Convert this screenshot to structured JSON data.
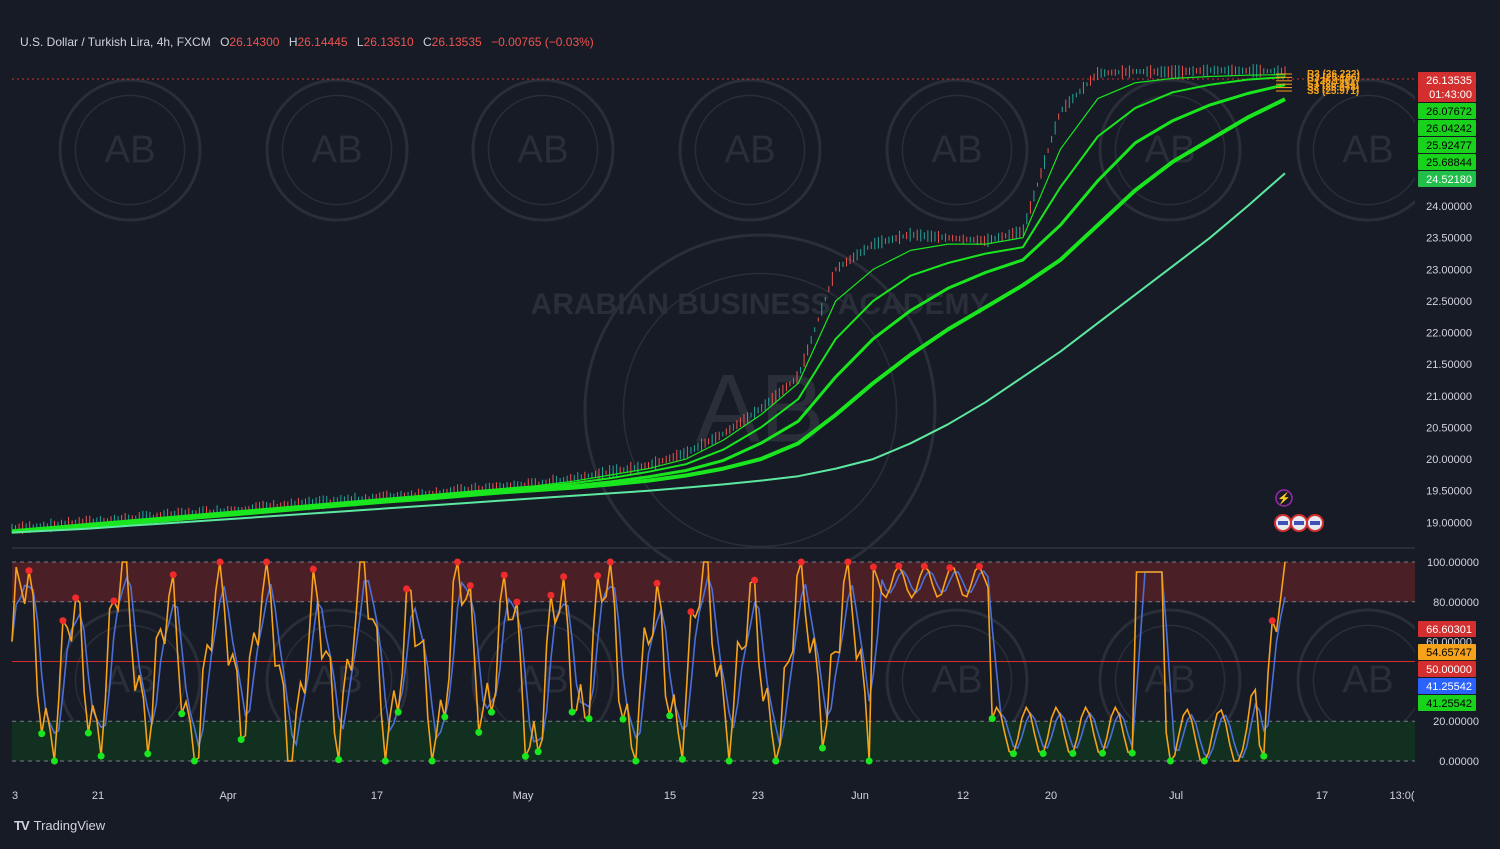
{
  "header": {
    "symbol": "U.S. Dollar / Turkish Lira, 4h, FXCM",
    "o_label": "O",
    "o_value": "26.14300",
    "h_label": "H",
    "h_value": "26.14445",
    "l_label": "L",
    "l_value": "26.13510",
    "c_label": "C",
    "c_value": "26.13535",
    "change": "−0.00765 (−0.03%)"
  },
  "brand": {
    "logo": "TV",
    "name": "TradingView"
  },
  "watermark": {
    "text": "ARABIAN BUSINESS ACADEMY",
    "mono": "AB"
  },
  "colors": {
    "background": "#171b25",
    "up": "#26a69a",
    "down": "#ef5350",
    "ema": "#19e61e",
    "ema_slow": "#5ce8a0",
    "stoch_k": "#f7a21b",
    "stoch_d": "#4b6fd6",
    "overbought": "#4a1f25",
    "oversold": "#12301f"
  },
  "chart_data": [
    {
      "type": "line",
      "panel": "price",
      "y_ticks": [
        "19.00000",
        "19.50000",
        "20.00000",
        "20.50000",
        "21.00000",
        "21.50000",
        "22.00000",
        "22.50000",
        "23.00000",
        "23.50000",
        "24.00000"
      ],
      "ylim": [
        18.8,
        26.5
      ],
      "x_ticks": [
        "3",
        "21",
        "Apr",
        "17",
        "May",
        "15",
        "23",
        "Jun",
        "12",
        "20",
        "Jul",
        "17",
        "13:0("
      ],
      "last_price": "26.13535",
      "countdown": "01:43:00",
      "ema_labels": [
        "26.07672",
        "26.04242",
        "25.92477",
        "25.68844",
        "24.52180"
      ],
      "pivot_labels": [
        "R3 (26.222)",
        "R2 (26.186)",
        "P (26.150)",
        "S1 (26.114)",
        "S2 (26.078)",
        "S3 (25.971)"
      ],
      "series": [
        {
          "name": "",
          "values": [
            18.9,
            18.95,
            19.0,
            19.05,
            19.1,
            19.15,
            19.2,
            19.25,
            19.3,
            19.35,
            19.4,
            19.45,
            19.5,
            19.55,
            19.6,
            19.7,
            19.8,
            19.9,
            20.1,
            20.4,
            20.8,
            21.3,
            23.0,
            23.4,
            23.55,
            23.5,
            23.45,
            23.6,
            25.5,
            26.1,
            26.13,
            26.12,
            26.15,
            26.14,
            26.13
          ]
        },
        {
          "name": "",
          "values": [
            18.88,
            18.93,
            18.98,
            19.03,
            19.08,
            19.13,
            19.18,
            19.23,
            19.28,
            19.33,
            19.38,
            19.43,
            19.48,
            19.53,
            19.58,
            19.65,
            19.75,
            19.85,
            20.0,
            20.3,
            20.7,
            21.2,
            22.5,
            23.0,
            23.3,
            23.4,
            23.4,
            23.5,
            24.9,
            25.7,
            25.95,
            26.02,
            26.05,
            26.07,
            26.08
          ]
        },
        {
          "name": "",
          "values": [
            18.87,
            18.92,
            18.97,
            19.02,
            19.07,
            19.12,
            19.17,
            19.22,
            19.27,
            19.32,
            19.37,
            19.42,
            19.47,
            19.52,
            19.56,
            19.62,
            19.7,
            19.8,
            19.92,
            20.15,
            20.5,
            20.95,
            21.9,
            22.5,
            22.9,
            23.1,
            23.25,
            23.35,
            24.3,
            25.1,
            25.55,
            25.8,
            25.92,
            26.0,
            26.04
          ]
        },
        {
          "name": "",
          "values": [
            18.86,
            18.9,
            18.95,
            19.0,
            19.05,
            19.1,
            19.15,
            19.2,
            19.25,
            19.3,
            19.35,
            19.4,
            19.45,
            19.5,
            19.54,
            19.58,
            19.64,
            19.72,
            19.82,
            19.98,
            20.25,
            20.6,
            21.3,
            21.9,
            22.35,
            22.7,
            22.95,
            23.15,
            23.7,
            24.4,
            25.0,
            25.35,
            25.6,
            25.78,
            25.92
          ]
        },
        {
          "name": "",
          "values": [
            18.85,
            18.89,
            18.93,
            18.98,
            19.03,
            19.08,
            19.13,
            19.18,
            19.23,
            19.28,
            19.33,
            19.37,
            19.42,
            19.47,
            19.51,
            19.55,
            19.6,
            19.66,
            19.74,
            19.85,
            20.0,
            20.25,
            20.7,
            21.2,
            21.65,
            22.05,
            22.4,
            22.75,
            23.15,
            23.7,
            24.25,
            24.7,
            25.05,
            25.4,
            25.69
          ]
        },
        {
          "name": "",
          "values": [
            18.84,
            18.87,
            18.9,
            18.94,
            18.98,
            19.02,
            19.06,
            19.1,
            19.14,
            19.18,
            19.22,
            19.26,
            19.3,
            19.34,
            19.38,
            19.42,
            19.46,
            19.5,
            19.55,
            19.6,
            19.66,
            19.73,
            19.85,
            20.0,
            20.25,
            20.55,
            20.9,
            21.3,
            21.7,
            22.15,
            22.6,
            23.05,
            23.5,
            24.0,
            24.52
          ]
        }
      ]
    },
    {
      "type": "line",
      "panel": "stochastic",
      "y_ticks": [
        "0.00000",
        "20.00000",
        "80.00000",
        "100.00000"
      ],
      "ylim": [
        0,
        100
      ],
      "levels": [
        20,
        50,
        80
      ],
      "overlap_tick": "60.00000",
      "value_labels": [
        "66.60301",
        "54.65747",
        "50.00000",
        "41.25542",
        "41.25542"
      ]
    }
  ]
}
